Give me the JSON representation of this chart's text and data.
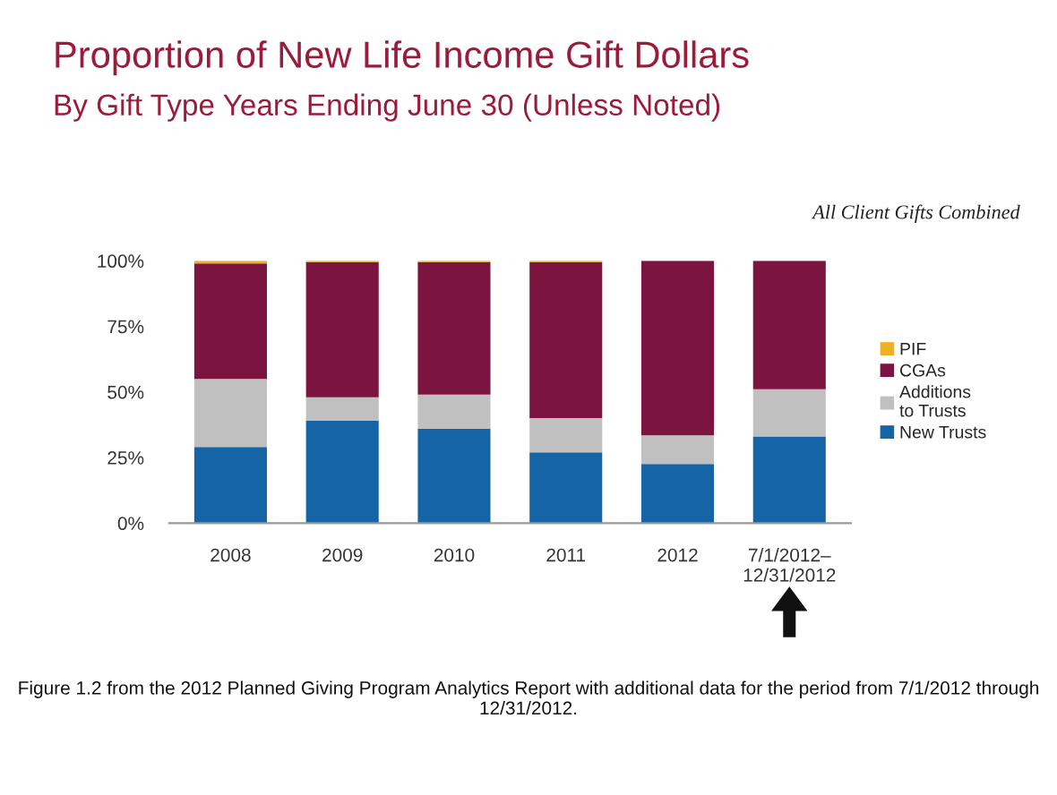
{
  "chart_data": {
    "type": "bar",
    "stacked": true,
    "title": "Proportion of New Life Income Gift Dollars",
    "subtitle": "By Gift Type Years Ending June 30 (Unless Noted)",
    "annotations": [
      "All Client Gifts Combined",
      "Figure 1.2 from the 2012 Planned Giving Program Analytics Report with additional data for the period from 7/1/2012 through 12/31/2012."
    ],
    "categories": [
      "2008",
      "2009",
      "2010",
      "2011",
      "2012",
      "7/1/2012–\n12/31/2012"
    ],
    "series": [
      {
        "name": "New Trusts",
        "color": "#1565a6",
        "values": [
          29,
          39,
          36,
          27,
          22.5,
          33
        ]
      },
      {
        "name": "Additions\nto Trusts",
        "color": "#c0c0c0",
        "values": [
          26,
          9,
          13,
          13,
          11,
          18
        ]
      },
      {
        "name": "CGAs",
        "color": "#7b1540",
        "values": [
          44,
          51.5,
          50.5,
          59.5,
          66.5,
          49
        ]
      },
      {
        "name": "PIF",
        "color": "#f0b020",
        "values": [
          1,
          0.5,
          0.5,
          0.5,
          0,
          0
        ]
      }
    ],
    "ylim": [
      0,
      100
    ],
    "yticks": [
      {
        "value": 0,
        "label": "0%"
      },
      {
        "value": 25,
        "label": "25%"
      },
      {
        "value": 50,
        "label": "50%"
      },
      {
        "value": 75,
        "label": "75%"
      },
      {
        "value": 100,
        "label": "100%"
      }
    ],
    "grid": false,
    "legend": "right"
  }
}
